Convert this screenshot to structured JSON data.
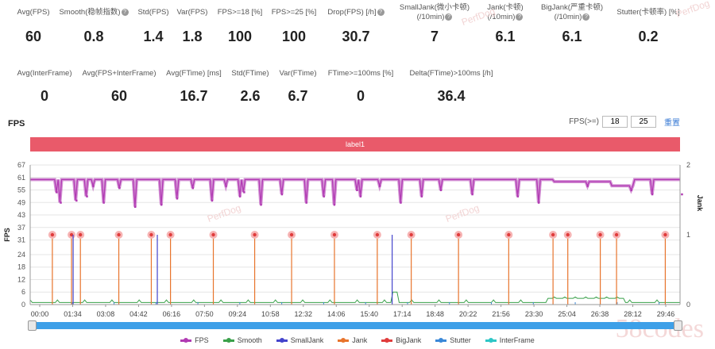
{
  "stats_row1": [
    {
      "label": "Avg(FPS)",
      "help": false,
      "value": "60"
    },
    {
      "label": "Smooth(稳帧指数)",
      "help": true,
      "value": "0.8"
    },
    {
      "label": "Std(FPS)",
      "help": false,
      "value": "1.4"
    },
    {
      "label": "Var(FPS)",
      "help": false,
      "value": "1.8"
    },
    {
      "label": "FPS>=18 [%]",
      "help": false,
      "value": "100"
    },
    {
      "label": "FPS>=25 [%]",
      "help": false,
      "value": "100"
    },
    {
      "label": "Drop(FPS) [/h]",
      "help": true,
      "value": "30.7"
    },
    {
      "label": "SmallJank(微小卡顿)\n(/10min)",
      "help": true,
      "value": "7"
    },
    {
      "label": "Jank(卡顿)\n(/10min)",
      "help": true,
      "value": "6.1"
    },
    {
      "label": "BigJank(严重卡顿)\n(/10min)",
      "help": true,
      "value": "6.1"
    },
    {
      "label": "Stutter(卡顿率) [%]",
      "help": false,
      "value": "0.2"
    }
  ],
  "stats_row2": [
    {
      "label": "Avg(InterFrame)",
      "help": false,
      "value": "0"
    },
    {
      "label": "Avg(FPS+InterFrame)",
      "help": false,
      "value": "60"
    },
    {
      "label": "Avg(FTime) [ms]",
      "help": false,
      "value": "16.7"
    },
    {
      "label": "Std(FTime)",
      "help": false,
      "value": "2.6"
    },
    {
      "label": "Var(FTime)",
      "help": false,
      "value": "6.7"
    },
    {
      "label": "FTime>=100ms [%]",
      "help": false,
      "value": "0"
    },
    {
      "label": "Delta(FTime)>100ms [/h]",
      "help": false,
      "value": "36.4"
    }
  ],
  "chart_title": "FPS",
  "fps_filter": {
    "label": "FPS(>=)",
    "value1": "18",
    "value2": "25",
    "reset_label": "重置"
  },
  "label_bar": "label1",
  "watermark": "PerfDog",
  "watermark_site": "58codes",
  "colors": {
    "fps": "#b13bb3",
    "smooth": "#3aa14a",
    "smalljank": "#4444cc",
    "jank": "#e8742c",
    "bigjank": "#e03c3c",
    "stutter": "#3a88d8",
    "interframe": "#2ec6c6",
    "label_bar": "#e95a6a",
    "scrollbar": "#3ea0e8"
  },
  "chart_data": {
    "type": "line",
    "ylabel_left": "FPS",
    "ylabel_right": "Jank",
    "y_ticks_left": [
      0,
      6,
      12,
      18,
      24,
      31,
      37,
      43,
      49,
      55,
      61,
      67
    ],
    "y_ticks_right": [
      0,
      1,
      2
    ],
    "x_tick_labels": [
      "00:00",
      "01:34",
      "03:08",
      "04:42",
      "06:16",
      "07:50",
      "09:24",
      "10:58",
      "12:32",
      "14:06",
      "15:40",
      "17:14",
      "18:48",
      "20:22",
      "21:56",
      "23:30",
      "25:04",
      "26:38",
      "28:12",
      "29:46"
    ],
    "duration_seconds": 1860,
    "fps_baseline": 60,
    "fps_plateau": [
      [
        1500,
        1680,
        59
      ]
    ],
    "fps_dip_segment": [
      1665,
      1725,
      57
    ],
    "fps_drops": [
      [
        75,
        54
      ],
      [
        87,
        49
      ],
      [
        132,
        50
      ],
      [
        162,
        52
      ],
      [
        180,
        57
      ],
      [
        210,
        49
      ],
      [
        255,
        56
      ],
      [
        300,
        47
      ],
      [
        375,
        48
      ],
      [
        420,
        51
      ],
      [
        465,
        56
      ],
      [
        520,
        50
      ],
      [
        560,
        57
      ],
      [
        600,
        52
      ],
      [
        612,
        54
      ],
      [
        660,
        48
      ],
      [
        720,
        53
      ],
      [
        790,
        49
      ],
      [
        840,
        52
      ],
      [
        870,
        48
      ],
      [
        935,
        55
      ],
      [
        945,
        52
      ],
      [
        1000,
        57
      ],
      [
        1060,
        49
      ],
      [
        1120,
        52
      ],
      [
        1175,
        55
      ],
      [
        1265,
        53
      ],
      [
        1395,
        52
      ],
      [
        1455,
        49
      ],
      [
        1595,
        57
      ],
      [
        1720,
        55
      ],
      [
        1780,
        53
      ],
      [
        1865,
        53
      ]
    ],
    "bigjank_times": [
      75,
      140,
      170,
      300,
      410,
      475,
      620,
      760,
      885,
      1030,
      1175,
      1290,
      1450,
      1620,
      1770,
      1820,
      1930,
      1985,
      2150
    ],
    "smalljank_times": [
      140,
      425,
      1220
    ],
    "smooth_level": 1,
    "smooth_bump": [
      1480,
      1700,
      3
    ],
    "smooth_spike": [
      1045,
      6
    ],
    "series": [
      {
        "name": "FPS"
      },
      {
        "name": "Smooth"
      },
      {
        "name": "SmallJank"
      },
      {
        "name": "Jank"
      },
      {
        "name": "BigJank"
      },
      {
        "name": "Stutter"
      },
      {
        "name": "InterFrame"
      }
    ]
  }
}
